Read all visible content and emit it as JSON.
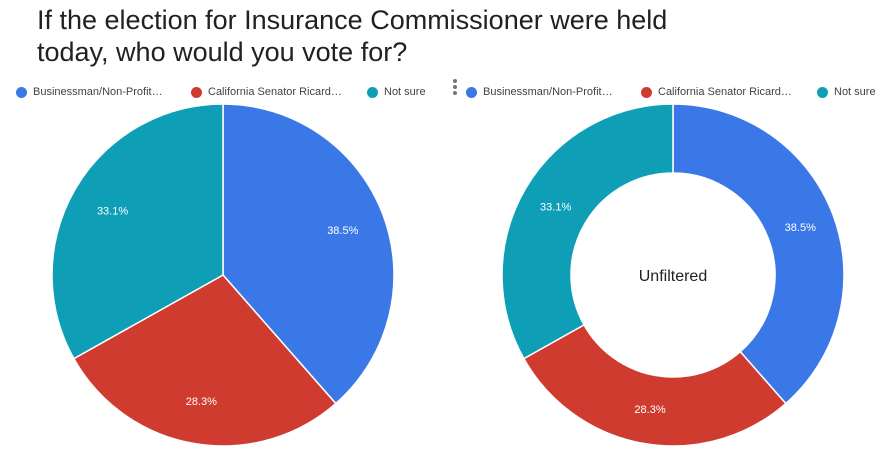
{
  "title": "If the election for Insurance Commissioner were held today, who would you vote for?",
  "legend_entries": [
    {
      "label": "Businessman/Non-Profit…",
      "color": "#3b78e7"
    },
    {
      "label": "California Senator Ricard…",
      "color": "#d03b2f"
    },
    {
      "label": "Not sure",
      "color": "#0e9fb7"
    }
  ],
  "menu_icon": "vertical-dots-icon",
  "chart_data": [
    {
      "type": "pie",
      "title": "",
      "categories": [
        "Businessman/Non-Profit…",
        "California Senator Ricard…",
        "Not sure"
      ],
      "values": [
        38.5,
        28.3,
        33.1
      ],
      "labels": [
        "38.5%",
        "28.3%",
        "33.1%"
      ],
      "colors": [
        "#3b78e7",
        "#d03b2f",
        "#0e9fb7"
      ],
      "legend": "top"
    },
    {
      "type": "pie",
      "title": "",
      "center_label": "Unfiltered",
      "categories": [
        "Businessman/Non-Profit…",
        "California Senator Ricard…",
        "Not sure"
      ],
      "values": [
        38.5,
        28.3,
        33.1
      ],
      "labels": [
        "38.5%",
        "28.3%",
        "33.1%"
      ],
      "colors": [
        "#3b78e7",
        "#d03b2f",
        "#0e9fb7"
      ],
      "legend": "top"
    }
  ]
}
